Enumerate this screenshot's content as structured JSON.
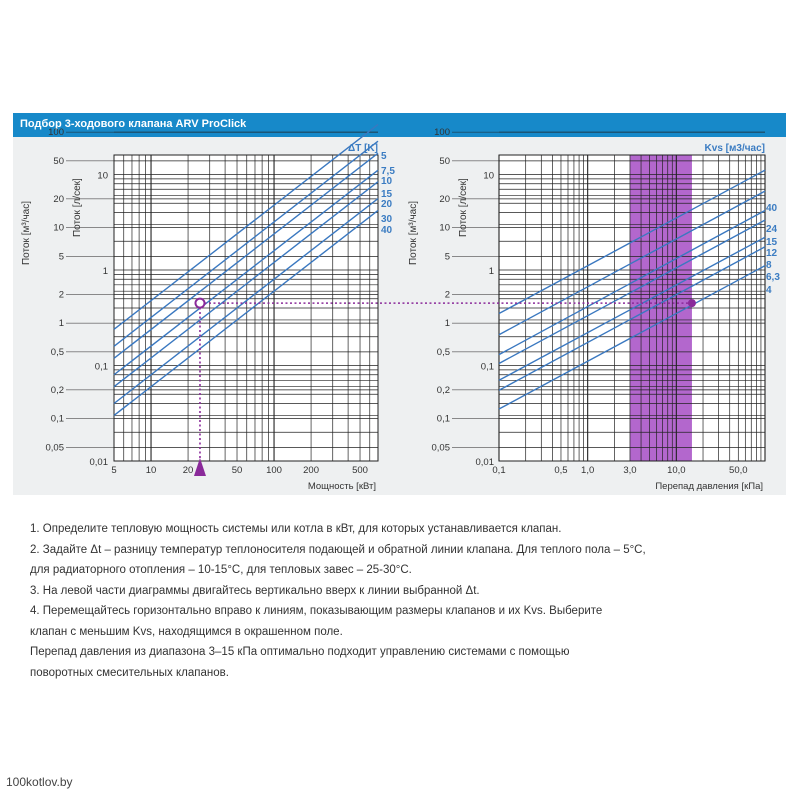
{
  "header": {
    "title": "Подбор 3-ходового клапана ARV ProClick"
  },
  "colors": {
    "header": "#1789c9",
    "panel": "#eef0f1",
    "line": "#3a78c0",
    "label_blue": "#3b7cc2",
    "highlight": "#a64cc4",
    "marker": "#8a2a9a"
  },
  "chart_data": [
    {
      "type": "line",
      "x_scale": "log",
      "y_scale": "log",
      "x_ticks": [
        "5",
        "10",
        "20",
        "50",
        "100",
        "200",
        "500"
      ],
      "xlabel": "Мощность [кВт]",
      "y_outer_label": "Поток [м³/час]",
      "y_outer_ticks": [
        "100",
        "50",
        "20",
        "10",
        "5",
        "2",
        "1",
        "0,5",
        "0,2",
        "0,1",
        "0,05"
      ],
      "y_inner_label": "Поток [л/сек]",
      "y_inner_ticks": [
        "10",
        "1",
        "0,1",
        "0,01"
      ],
      "legend_title": "ΔT [K]",
      "series": [
        {
          "name": "5",
          "x": [
            5,
            700
          ],
          "y": [
            0.239,
            33.4
          ]
        },
        {
          "name": "7,5",
          "x": [
            5,
            700
          ],
          "y": [
            0.159,
            22.3
          ]
        },
        {
          "name": "10",
          "x": [
            5,
            700
          ],
          "y": [
            0.119,
            16.7
          ]
        },
        {
          "name": "15",
          "x": [
            5,
            700
          ],
          "y": [
            0.08,
            11.1
          ]
        },
        {
          "name": "20",
          "x": [
            5,
            700
          ],
          "y": [
            0.06,
            8.4
          ]
        },
        {
          "name": "30",
          "x": [
            5,
            700
          ],
          "y": [
            0.04,
            5.6
          ]
        },
        {
          "name": "40",
          "x": [
            5,
            700
          ],
          "y": [
            0.03,
            4.2
          ]
        }
      ],
      "selected_point": {
        "x": 25,
        "y": 0.45
      }
    },
    {
      "type": "line",
      "x_scale": "log",
      "y_scale": "log",
      "x_ticks": [
        "0,1",
        "0,5",
        "1,0",
        "3,0",
        "10,0",
        "50,0"
      ],
      "xlabel": "Перепад давления [кПа]",
      "y_outer_label": "Поток [м³/час]",
      "y_outer_ticks": [
        "100",
        "50",
        "20",
        "10",
        "5",
        "2",
        "1",
        "0,5",
        "0,2",
        "0,1",
        "0,05"
      ],
      "y_inner_label": "Поток [л/сек]",
      "y_inner_ticks": [
        "10",
        "1",
        "0,1",
        "0,01"
      ],
      "legend_title": "Kvs [м3/час]",
      "highlight_range": [
        3,
        15
      ],
      "series": [
        {
          "name": "40",
          "x": [
            0.1,
            100
          ],
          "y": [
            0.35,
            11.1
          ]
        },
        {
          "name": "24",
          "x": [
            0.1,
            100
          ],
          "y": [
            0.21,
            6.7
          ]
        },
        {
          "name": "15",
          "x": [
            0.1,
            100
          ],
          "y": [
            0.13,
            4.2
          ]
        },
        {
          "name": "12",
          "x": [
            0.1,
            100
          ],
          "y": [
            0.105,
            3.33
          ]
        },
        {
          "name": "8",
          "x": [
            0.1,
            100
          ],
          "y": [
            0.07,
            2.2
          ]
        },
        {
          "name": "6,3",
          "x": [
            0.1,
            100
          ],
          "y": [
            0.055,
            1.75
          ]
        },
        {
          "name": "4",
          "x": [
            0.1,
            100
          ],
          "y": [
            0.035,
            1.11
          ]
        }
      ],
      "selected_point": {
        "x": 15,
        "y": 0.45
      }
    }
  ],
  "instructions": [
    "1. Определите тепловую мощность системы или котла в кВт, для которых устанавливается клапан.",
    "2. Задайте Δt – разницу температур теплоносителя подающей и обратной линии клапана. Для теплого пола – 5°С,",
    "для радиаторного отопления – 10-15°С, для тепловых завес – 25-30°С.",
    "3. На левой части диаграммы двигайтесь вертикально вверх к линии выбранной Δt.",
    "4. Перемещайтесь горизонтально вправо к линиям, показывающим размеры клапанов и их Kvs. Выберите",
    "клапан с меньшим Kvs, находящимся в окрашенном поле.",
    "Перепад давления из диапазона 3–15 кПа оптимально подходит управлению системами с помощью",
    "поворотных смесительных клапанов."
  ],
  "watermark": "100kotlov.by"
}
